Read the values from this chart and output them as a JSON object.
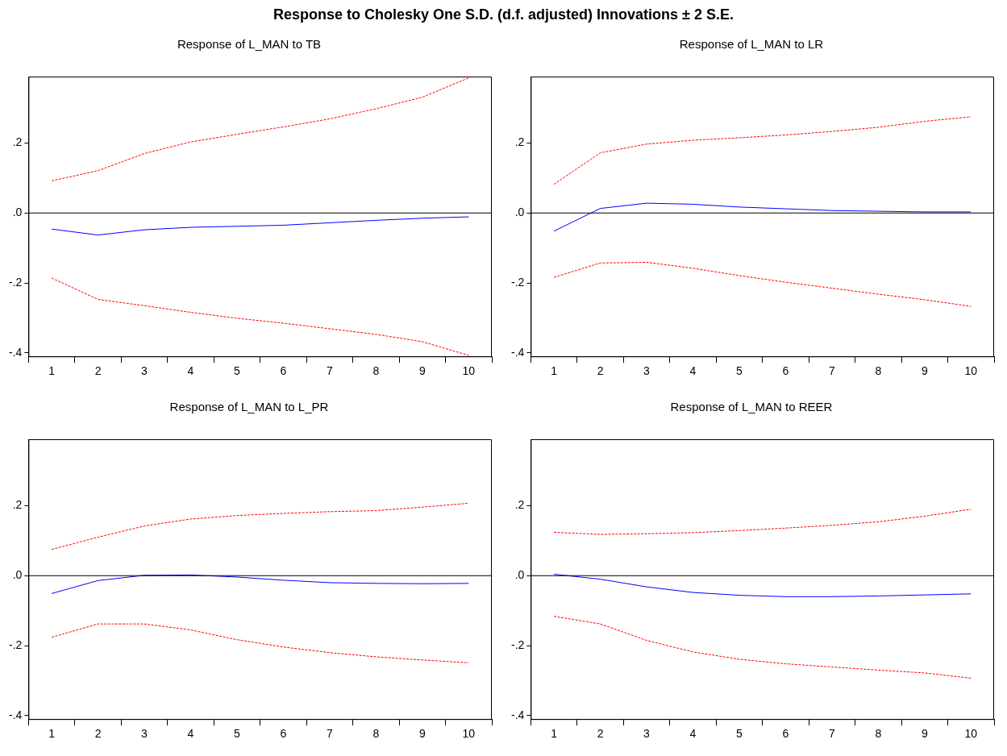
{
  "chart_data": [
    {
      "type": "line",
      "title": "Response of L_MAN to TB",
      "annotations": [
        "Response to Cholesky One S.D. (d.f. adjusted) Innovations ± 2 S.E."
      ],
      "categories": [
        "1",
        "2",
        "3",
        "4",
        "5",
        "6",
        "7",
        "8",
        "9",
        "10"
      ],
      "series": [
        {
          "color": "#0000ff",
          "line_style": "solid",
          "values": [
            -0.046,
            -0.063,
            -0.048,
            -0.041,
            -0.038,
            -0.035,
            -0.028,
            -0.021,
            -0.015,
            -0.011
          ]
        },
        {
          "color": "#ff0000",
          "line_style": "dashed",
          "values": [
            0.092,
            0.121,
            0.17,
            0.203,
            0.225,
            0.246,
            0.269,
            0.298,
            0.331,
            0.386
          ]
        },
        {
          "color": "#ff0000",
          "line_style": "dashed",
          "values": [
            -0.186,
            -0.247,
            -0.265,
            -0.284,
            -0.301,
            -0.315,
            -0.331,
            -0.347,
            -0.368,
            -0.407
          ]
        }
      ],
      "ylim": [
        -0.41,
        0.39
      ],
      "yticks": [
        {
          "value": -0.4,
          "label": "-.4"
        },
        {
          "value": -0.2,
          "label": "-.2"
        },
        {
          "value": 0,
          "label": ".0"
        },
        {
          "value": 0.2,
          "label": ".2"
        }
      ],
      "ref_lines": [
        {
          "axis": "y",
          "value": 0,
          "color": "#000000"
        }
      ],
      "grid": false,
      "legend": false,
      "marker": "none"
    },
    {
      "type": "line",
      "title": "Response of L_MAN to LR",
      "categories": [
        "1",
        "2",
        "3",
        "4",
        "5",
        "6",
        "7",
        "8",
        "9",
        "10"
      ],
      "series": [
        {
          "color": "#0000ff",
          "line_style": "solid",
          "values": [
            -0.052,
            0.013,
            0.028,
            0.025,
            0.017,
            0.012,
            0.007,
            0.005,
            0.003,
            0.003
          ]
        },
        {
          "color": "#ff0000",
          "line_style": "dashed",
          "values": [
            0.082,
            0.172,
            0.197,
            0.208,
            0.215,
            0.223,
            0.233,
            0.245,
            0.262,
            0.275
          ]
        },
        {
          "color": "#ff0000",
          "line_style": "dashed",
          "values": [
            -0.184,
            -0.143,
            -0.141,
            -0.158,
            -0.179,
            -0.198,
            -0.215,
            -0.232,
            -0.248,
            -0.267
          ]
        }
      ],
      "ylim": [
        -0.41,
        0.39
      ],
      "yticks": [
        {
          "value": -0.4,
          "label": "-.4"
        },
        {
          "value": -0.2,
          "label": "-.2"
        },
        {
          "value": 0,
          "label": ".0"
        },
        {
          "value": 0.2,
          "label": ".2"
        }
      ],
      "ref_lines": [
        {
          "axis": "y",
          "value": 0,
          "color": "#000000"
        }
      ],
      "grid": false,
      "legend": false,
      "marker": "none"
    },
    {
      "type": "line",
      "title": "Response of L_MAN to L_PR",
      "categories": [
        "1",
        "2",
        "3",
        "4",
        "5",
        "6",
        "7",
        "8",
        "9",
        "10"
      ],
      "series": [
        {
          "color": "#0000ff",
          "line_style": "solid",
          "values": [
            -0.051,
            -0.014,
            0.001,
            0.002,
            -0.004,
            -0.013,
            -0.02,
            -0.022,
            -0.023,
            -0.022
          ]
        },
        {
          "color": "#ff0000",
          "line_style": "dashed",
          "values": [
            0.075,
            0.11,
            0.142,
            0.162,
            0.172,
            0.178,
            0.183,
            0.186,
            0.196,
            0.207
          ]
        },
        {
          "color": "#ff0000",
          "line_style": "dashed",
          "values": [
            -0.176,
            -0.138,
            -0.138,
            -0.155,
            -0.183,
            -0.204,
            -0.22,
            -0.232,
            -0.241,
            -0.249
          ]
        }
      ],
      "ylim": [
        -0.41,
        0.39
      ],
      "yticks": [
        {
          "value": -0.4,
          "label": "-.4"
        },
        {
          "value": -0.2,
          "label": "-.2"
        },
        {
          "value": 0,
          "label": ".0"
        },
        {
          "value": 0.2,
          "label": ".2"
        }
      ],
      "ref_lines": [
        {
          "axis": "y",
          "value": 0,
          "color": "#000000"
        }
      ],
      "grid": false,
      "legend": false,
      "marker": "none"
    },
    {
      "type": "line",
      "title": "Response of L_MAN to REER",
      "categories": [
        "1",
        "2",
        "3",
        "4",
        "5",
        "6",
        "7",
        "8",
        "9",
        "10"
      ],
      "series": [
        {
          "color": "#0000ff",
          "line_style": "solid",
          "values": [
            0.004,
            -0.01,
            -0.032,
            -0.048,
            -0.056,
            -0.06,
            -0.06,
            -0.058,
            -0.055,
            -0.052
          ]
        },
        {
          "color": "#ff0000",
          "line_style": "dashed",
          "values": [
            0.124,
            0.118,
            0.12,
            0.123,
            0.129,
            0.136,
            0.144,
            0.154,
            0.17,
            0.19
          ]
        },
        {
          "color": "#ff0000",
          "line_style": "dashed",
          "values": [
            -0.116,
            -0.138,
            -0.185,
            -0.218,
            -0.239,
            -0.252,
            -0.261,
            -0.27,
            -0.278,
            -0.293
          ]
        }
      ],
      "ylim": [
        -0.41,
        0.39
      ],
      "yticks": [
        {
          "value": -0.4,
          "label": "-.4"
        },
        {
          "value": -0.2,
          "label": "-.2"
        },
        {
          "value": 0,
          "label": ".0"
        },
        {
          "value": 0.2,
          "label": ".2"
        }
      ],
      "ref_lines": [
        {
          "axis": "y",
          "value": 0,
          "color": "#000000"
        }
      ],
      "grid": false,
      "legend": false,
      "marker": "none"
    }
  ]
}
